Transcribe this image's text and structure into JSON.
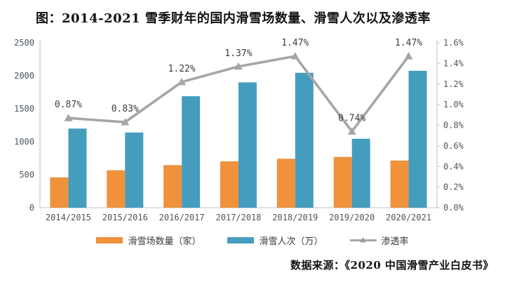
{
  "header": {
    "title": "图：2014-2021 雪季财年的国内滑雪场数量、滑雪人次以及渗透率"
  },
  "footer": {
    "source": "数据来源：《2020 中国滑雪产业白皮书》"
  },
  "colors": {
    "bar_resorts": "#F0913C",
    "bar_visits": "#459DBE",
    "penetration_line": "#A6A6A6",
    "axis_line": "#C9CED3",
    "tick_text": "#4D565E",
    "data_label_text": "#3D3D3D"
  },
  "chart_data": {
    "type": "bar",
    "subtype": "combo-bar-line",
    "title": "图：2014-2021 雪季财年的国内滑雪场数量、滑雪人次以及渗透率",
    "categories": [
      "2014/2015",
      "2015/2016",
      "2016/2017",
      "2017/2018",
      "2018/2019",
      "2019/2020",
      "2020/2021"
    ],
    "series": [
      {
        "name": "滑雪场数量（家）",
        "type": "bar",
        "axis": "left",
        "color": "#F0913C",
        "values": [
          460,
          568,
          646,
          703,
          742,
          770,
          715
        ]
      },
      {
        "name": "滑雪人次（万）",
        "type": "bar",
        "axis": "left",
        "color": "#459DBE",
        "values": [
          1200,
          1140,
          1690,
          1900,
          2045,
          1045,
          2076
        ]
      },
      {
        "name": "渗透率",
        "type": "line",
        "axis": "right",
        "color": "#A6A6A6",
        "values": [
          0.87,
          0.83,
          1.22,
          1.37,
          1.47,
          0.74,
          1.47
        ],
        "labels": [
          "0.87%",
          "0.83%",
          "1.22%",
          "1.37%",
          "1.47%",
          "0.74%",
          "1.47%"
        ]
      }
    ],
    "y_left": {
      "min": 0,
      "max": 2500,
      "step": 500,
      "ticks": [
        "0",
        "500",
        "1000",
        "1500",
        "2000",
        "2500"
      ]
    },
    "y_right": {
      "min": 0,
      "max": 1.6,
      "step": 0.2,
      "ticks": [
        "0.0%",
        "0.2%",
        "0.4%",
        "0.6%",
        "0.8%",
        "1.0%",
        "1.2%",
        "1.4%",
        "1.6%"
      ]
    },
    "grid": false,
    "legend_position": "bottom"
  }
}
